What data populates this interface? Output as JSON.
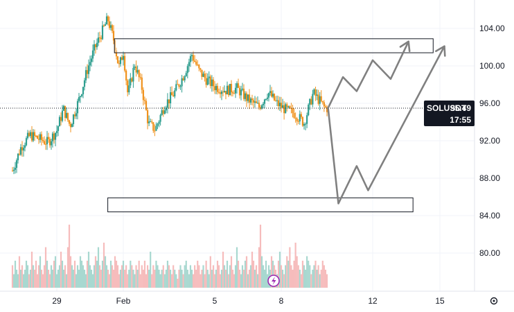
{
  "chart_data": {
    "type": "candlestick",
    "symbol": "SOLUSDT",
    "last_price": "95.49",
    "countdown": "17:55",
    "y_axis": {
      "ticks": [
        "104.00",
        "100.00",
        "96.00",
        "92.00",
        "88.00",
        "84.00",
        "80.00"
      ],
      "range": [
        76,
        106
      ]
    },
    "x_axis": {
      "ticks": [
        "29",
        "Feb",
        "5",
        "8",
        "12",
        "15"
      ]
    },
    "close_path": [
      [
        27.0,
        88.8
      ],
      [
        27.4,
        91.4
      ],
      [
        27.8,
        92.6
      ],
      [
        28.2,
        92.2
      ],
      [
        28.6,
        91.8
      ],
      [
        29.0,
        93.1
      ],
      [
        29.3,
        95.4
      ],
      [
        29.6,
        93.6
      ],
      [
        30.0,
        96.4
      ],
      [
        30.4,
        99.8
      ],
      [
        30.7,
        101.8
      ],
      [
        31.0,
        103.4
      ],
      [
        31.3,
        105.0
      ],
      [
        31.6,
        102.5
      ],
      [
        31.8,
        99.8
      ],
      [
        32.0,
        101.5
      ],
      [
        32.2,
        96.9
      ],
      [
        32.5,
        100.2
      ],
      [
        32.8,
        97.8
      ],
      [
        33.1,
        93.8
      ],
      [
        33.4,
        93.2
      ],
      [
        33.8,
        95.8
      ],
      [
        34.2,
        97.0
      ],
      [
        34.6,
        98.8
      ],
      [
        35.0,
        101.2
      ],
      [
        35.3,
        99.5
      ],
      [
        35.6,
        98.6
      ],
      [
        36.0,
        97.8
      ],
      [
        36.5,
        97.4
      ],
      [
        37.0,
        97.6
      ],
      [
        37.5,
        96.4
      ],
      [
        38.0,
        95.6
      ],
      [
        38.4,
        97.2
      ],
      [
        38.8,
        96.0
      ],
      [
        39.2,
        95.3
      ],
      [
        39.6,
        94.9
      ],
      [
        40.0,
        93.9
      ],
      [
        40.4,
        97.1
      ],
      [
        40.7,
        96.2
      ],
      [
        40.9,
        95.5
      ],
      [
        41.05,
        95.49
      ]
    ],
    "volume_indices": [
      5,
      3,
      6,
      4,
      3,
      7,
      4,
      5,
      3,
      4,
      6,
      5,
      3,
      4,
      8,
      5,
      4,
      6,
      3,
      5,
      7,
      4,
      3,
      5,
      9,
      6,
      4,
      3,
      5,
      4,
      6,
      7,
      3,
      4,
      5,
      8,
      6,
      4,
      5,
      3,
      9,
      14,
      7,
      5,
      4,
      6,
      3,
      5,
      4,
      7,
      6,
      5,
      4,
      3,
      6,
      8,
      5,
      4,
      3,
      5,
      7,
      6,
      9,
      5,
      4,
      6,
      10,
      7,
      5,
      4,
      3,
      6,
      5,
      4,
      7,
      6,
      5,
      3,
      4,
      5,
      6,
      4,
      5,
      3,
      4,
      6,
      5,
      4,
      3,
      5,
      4,
      6,
      3,
      5,
      4,
      6,
      3,
      5,
      4,
      8,
      3,
      5,
      4,
      6,
      5,
      4,
      3,
      4,
      5,
      3,
      4,
      6,
      5,
      4,
      3,
      5,
      4,
      3,
      2,
      4,
      5,
      4,
      3,
      5,
      6,
      4,
      3,
      5,
      4,
      3,
      5,
      4,
      6,
      5,
      3,
      4
    ],
    "zones": [
      {
        "label": "",
        "x_from": 31.6,
        "x_to": 45.7,
        "y_from": 101.4,
        "y_to": 102.9
      },
      {
        "label": "",
        "x_from": 31.3,
        "x_to": 44.8,
        "y_from": 84.4,
        "y_to": 85.9
      }
    ],
    "projection_path": [
      [
        41.05,
        95.5
      ],
      [
        41.7,
        98.8
      ],
      [
        42.3,
        97.3
      ],
      [
        43.0,
        100.6
      ],
      [
        43.8,
        98.6
      ],
      [
        44.6,
        102.6
      ]
    ],
    "projection_path_alt": [
      [
        41.05,
        95.5
      ],
      [
        41.5,
        85.3
      ],
      [
        42.3,
        89.3
      ],
      [
        42.8,
        86.7
      ],
      [
        46.2,
        102.1
      ]
    ],
    "colors": {
      "up": "#2f9e8f",
      "down": "#f0921d",
      "volume_up": "#a8d8d0",
      "volume_down": "#f6bcbc",
      "projection": "#808080",
      "zone": "#131722",
      "tag": "#131722",
      "grid": "#f0f3fa"
    },
    "icons": [
      "lightning-icon",
      "settings-icon"
    ]
  }
}
